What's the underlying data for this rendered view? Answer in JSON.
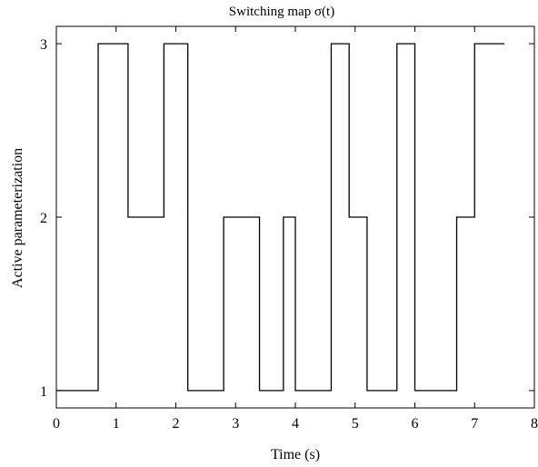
{
  "chart_data": {
    "type": "line",
    "step": true,
    "title": "Switching map σ(t)",
    "xlabel": "Time (s)",
    "ylabel": "Active parameterization",
    "xlim": [
      0,
      8
    ],
    "ylim": [
      0.9,
      3.1
    ],
    "xticks": [
      "0",
      "1",
      "2",
      "3",
      "4",
      "5",
      "6",
      "7",
      "8"
    ],
    "yticks": [
      "1",
      "2",
      "3"
    ],
    "grid": false,
    "series": [
      {
        "x": [
          0,
          0.7,
          1.2,
          1.8,
          2.2,
          2.8,
          3.4,
          3.8,
          4.0,
          4.6,
          4.9,
          5.2,
          5.7,
          6.0,
          6.7,
          7.0,
          7.5
        ],
        "y": [
          1,
          3,
          2,
          3,
          1,
          2,
          1,
          2,
          1,
          3,
          2,
          1,
          3,
          1,
          2,
          3,
          3
        ]
      }
    ],
    "colors": {
      "line": "#000000",
      "axes": "#000000"
    }
  }
}
